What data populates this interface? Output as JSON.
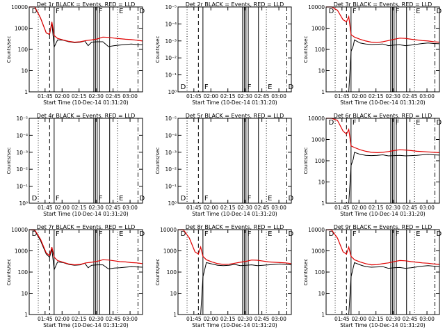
{
  "chart_data": {
    "type": "line",
    "x_label": "Start Time (10-Dec-14 01:31:20)",
    "y_label": "Counts/sec",
    "x_ticks": [
      "01:45",
      "02:00",
      "02:15",
      "02:30",
      "02:45",
      "03:00"
    ],
    "x_range_minutes": [
      0,
      100
    ],
    "y_scale": "log",
    "grid": false,
    "legend_text": "BLACK = Events, RED = LLD",
    "series_colors": {
      "events": "#000000",
      "lld": "#e00000"
    },
    "panels": [
      {
        "title": "Det 1r BLACK = Events, RED = LLD",
        "type": "data",
        "y_ticks": [
          "1",
          "10",
          "100",
          "1000",
          "10000"
        ],
        "ylim": [
          1,
          10000
        ],
        "event_x": [
          [
            0,
            10000
          ],
          [
            5,
            10000
          ],
          [
            10,
            3000
          ],
          [
            15,
            600
          ],
          [
            18,
            500
          ],
          [
            20,
            1800
          ],
          [
            22,
            130
          ],
          [
            25,
            280
          ],
          [
            30,
            270
          ],
          [
            35,
            230
          ],
          [
            40,
            210
          ],
          [
            45,
            220
          ],
          [
            49,
            250
          ],
          [
            52,
            150
          ],
          [
            55,
            220
          ],
          [
            60,
            230
          ],
          [
            65,
            230
          ],
          [
            70,
            135
          ],
          [
            75,
            150
          ],
          [
            80,
            160
          ],
          [
            85,
            170
          ],
          [
            90,
            180
          ],
          [
            95,
            170
          ],
          [
            100,
            165
          ]
        ],
        "lld_x": [
          [
            0,
            10000
          ],
          [
            5,
            10000
          ],
          [
            10,
            3000
          ],
          [
            15,
            600
          ],
          [
            18,
            520
          ],
          [
            20,
            2000
          ],
          [
            22,
            450
          ],
          [
            25,
            330
          ],
          [
            30,
            280
          ],
          [
            35,
            240
          ],
          [
            40,
            220
          ],
          [
            45,
            230
          ],
          [
            50,
            260
          ],
          [
            55,
            280
          ],
          [
            60,
            310
          ],
          [
            65,
            380
          ],
          [
            70,
            370
          ],
          [
            75,
            340
          ],
          [
            80,
            320
          ],
          [
            85,
            300
          ],
          [
            90,
            290
          ],
          [
            95,
            270
          ],
          [
            100,
            250
          ]
        ]
      },
      {
        "title": "Det 2r BLACK = Events, RED = LLD",
        "type": "empty",
        "y_ticks": [
          "10⁰",
          "10⁻¹",
          "10⁻²",
          "10⁻³",
          "10⁻⁴",
          "10⁻⁵"
        ]
      },
      {
        "title": "Det 3r BLACK = Events, RED = LLD",
        "type": "data",
        "y_ticks": [
          "1",
          "10",
          "100",
          "1000",
          "10000"
        ],
        "ylim": [
          1,
          10000
        ],
        "event_x": [
          [
            20,
            1
          ],
          [
            22,
            80
          ],
          [
            24,
            150
          ],
          [
            25,
            280
          ],
          [
            30,
            200
          ],
          [
            35,
            180
          ],
          [
            40,
            170
          ],
          [
            45,
            175
          ],
          [
            50,
            180
          ],
          [
            55,
            150
          ],
          [
            60,
            160
          ],
          [
            65,
            165
          ],
          [
            70,
            150
          ],
          [
            75,
            160
          ],
          [
            80,
            175
          ],
          [
            85,
            190
          ],
          [
            90,
            200
          ],
          [
            95,
            190
          ],
          [
            100,
            185
          ]
        ],
        "lld_x": [
          [
            0,
            10000
          ],
          [
            5,
            10000
          ],
          [
            10,
            7000
          ],
          [
            15,
            2500
          ],
          [
            18,
            2000
          ],
          [
            20,
            3500
          ],
          [
            22,
            500
          ],
          [
            25,
            380
          ],
          [
            30,
            300
          ],
          [
            35,
            250
          ],
          [
            40,
            220
          ],
          [
            45,
            210
          ],
          [
            50,
            230
          ],
          [
            55,
            260
          ],
          [
            60,
            300
          ],
          [
            65,
            340
          ],
          [
            70,
            330
          ],
          [
            75,
            300
          ],
          [
            80,
            280
          ],
          [
            85,
            260
          ],
          [
            90,
            250
          ],
          [
            95,
            230
          ],
          [
            100,
            220
          ]
        ]
      },
      {
        "title": "Det 4r BLACK = Events, RED = LLD",
        "type": "empty",
        "y_ticks": [
          "10⁰",
          "10⁻¹",
          "10⁻²",
          "10⁻³",
          "10⁻⁴",
          "10⁻⁵"
        ]
      },
      {
        "title": "Det 5r BLACK = Events, RED = LLD",
        "type": "empty",
        "y_ticks": [
          "10⁰",
          "10⁻¹",
          "10⁻²",
          "10⁻³",
          "10⁻⁴",
          "10⁻⁵"
        ]
      },
      {
        "title": "Det 6r BLACK = Events, RED = LLD",
        "type": "data",
        "y_ticks": [
          "1",
          "10",
          "100",
          "1000",
          "10000"
        ],
        "ylim": [
          1,
          10000
        ],
        "event_x": [
          [
            20,
            1
          ],
          [
            22,
            60
          ],
          [
            24,
            120
          ],
          [
            25,
            250
          ],
          [
            30,
            200
          ],
          [
            35,
            180
          ],
          [
            40,
            175
          ],
          [
            45,
            180
          ],
          [
            50,
            190
          ],
          [
            55,
            170
          ],
          [
            60,
            175
          ],
          [
            65,
            180
          ],
          [
            70,
            170
          ],
          [
            75,
            175
          ],
          [
            80,
            180
          ],
          [
            85,
            190
          ],
          [
            90,
            200
          ],
          [
            95,
            190
          ],
          [
            100,
            185
          ]
        ],
        "lld_x": [
          [
            0,
            10000
          ],
          [
            5,
            10000
          ],
          [
            10,
            8000
          ],
          [
            15,
            2500
          ],
          [
            18,
            1800
          ],
          [
            20,
            3000
          ],
          [
            22,
            500
          ],
          [
            25,
            420
          ],
          [
            30,
            330
          ],
          [
            35,
            280
          ],
          [
            40,
            250
          ],
          [
            45,
            240
          ],
          [
            50,
            250
          ],
          [
            55,
            270
          ],
          [
            60,
            300
          ],
          [
            65,
            330
          ],
          [
            70,
            320
          ],
          [
            75,
            300
          ],
          [
            80,
            280
          ],
          [
            85,
            270
          ],
          [
            90,
            260
          ],
          [
            95,
            250
          ],
          [
            100,
            240
          ]
        ]
      },
      {
        "title": "Det 7r BLACK = Events, RED = LLD",
        "type": "data",
        "y_ticks": [
          "1",
          "10",
          "100",
          "1000",
          "10000"
        ],
        "ylim": [
          1,
          10000
        ],
        "event_x": [
          [
            0,
            10000
          ],
          [
            5,
            9000
          ],
          [
            10,
            3000
          ],
          [
            15,
            700
          ],
          [
            18,
            500
          ],
          [
            20,
            1200
          ],
          [
            22,
            130
          ],
          [
            25,
            300
          ],
          [
            30,
            280
          ],
          [
            35,
            230
          ],
          [
            40,
            210
          ],
          [
            45,
            220
          ],
          [
            49,
            260
          ],
          [
            52,
            160
          ],
          [
            55,
            210
          ],
          [
            60,
            220
          ],
          [
            65,
            220
          ],
          [
            70,
            140
          ],
          [
            75,
            155
          ],
          [
            80,
            160
          ],
          [
            85,
            170
          ],
          [
            90,
            180
          ],
          [
            95,
            175
          ],
          [
            100,
            170
          ]
        ],
        "lld_x": [
          [
            0,
            10000
          ],
          [
            5,
            9500
          ],
          [
            10,
            3500
          ],
          [
            15,
            800
          ],
          [
            18,
            600
          ],
          [
            20,
            1500
          ],
          [
            22,
            500
          ],
          [
            25,
            350
          ],
          [
            30,
            290
          ],
          [
            35,
            240
          ],
          [
            40,
            220
          ],
          [
            45,
            230
          ],
          [
            50,
            270
          ],
          [
            55,
            290
          ],
          [
            60,
            320
          ],
          [
            65,
            380
          ],
          [
            70,
            370
          ],
          [
            75,
            340
          ],
          [
            80,
            310
          ],
          [
            85,
            300
          ],
          [
            90,
            280
          ],
          [
            95,
            270
          ],
          [
            100,
            250
          ]
        ]
      },
      {
        "title": "Det 8r BLACK = Events, RED = LLD",
        "type": "data",
        "y_ticks": [
          "1",
          "10",
          "100",
          "1000",
          "10000"
        ],
        "ylim": [
          1,
          10000
        ],
        "event_x": [
          [
            20,
            1
          ],
          [
            22,
            60
          ],
          [
            25,
            280
          ],
          [
            30,
            240
          ],
          [
            35,
            210
          ],
          [
            40,
            200
          ],
          [
            45,
            210
          ],
          [
            50,
            230
          ],
          [
            55,
            200
          ],
          [
            60,
            210
          ],
          [
            65,
            220
          ],
          [
            70,
            200
          ],
          [
            75,
            210
          ],
          [
            80,
            220
          ],
          [
            85,
            230
          ],
          [
            90,
            240
          ],
          [
            95,
            230
          ],
          [
            100,
            220
          ]
        ],
        "lld_x": [
          [
            0,
            10000
          ],
          [
            5,
            9500
          ],
          [
            10,
            4000
          ],
          [
            15,
            900
          ],
          [
            18,
            700
          ],
          [
            20,
            1500
          ],
          [
            22,
            550
          ],
          [
            25,
            380
          ],
          [
            30,
            300
          ],
          [
            35,
            250
          ],
          [
            40,
            230
          ],
          [
            45,
            235
          ],
          [
            50,
            260
          ],
          [
            55,
            290
          ],
          [
            60,
            320
          ],
          [
            65,
            370
          ],
          [
            70,
            360
          ],
          [
            75,
            330
          ],
          [
            80,
            300
          ],
          [
            85,
            290
          ],
          [
            90,
            280
          ],
          [
            95,
            270
          ],
          [
            100,
            250
          ]
        ]
      },
      {
        "title": "Det 9r BLACK = Events, RED = LLD",
        "type": "data",
        "y_ticks": [
          "1",
          "10",
          "100",
          "1000",
          "10000"
        ],
        "ylim": [
          1,
          10000
        ],
        "event_x": [
          [
            20,
            1
          ],
          [
            22,
            60
          ],
          [
            25,
            280
          ],
          [
            30,
            220
          ],
          [
            35,
            180
          ],
          [
            40,
            170
          ],
          [
            45,
            175
          ],
          [
            50,
            180
          ],
          [
            55,
            150
          ],
          [
            60,
            160
          ],
          [
            65,
            165
          ],
          [
            70,
            150
          ],
          [
            75,
            160
          ],
          [
            80,
            175
          ],
          [
            85,
            190
          ],
          [
            90,
            200
          ],
          [
            95,
            190
          ],
          [
            100,
            185
          ]
        ],
        "lld_x": [
          [
            0,
            10000
          ],
          [
            5,
            9500
          ],
          [
            10,
            4000
          ],
          [
            15,
            900
          ],
          [
            18,
            700
          ],
          [
            20,
            1500
          ],
          [
            22,
            550
          ],
          [
            25,
            380
          ],
          [
            30,
            300
          ],
          [
            35,
            250
          ],
          [
            40,
            220
          ],
          [
            45,
            225
          ],
          [
            50,
            250
          ],
          [
            55,
            270
          ],
          [
            60,
            310
          ],
          [
            65,
            350
          ],
          [
            70,
            340
          ],
          [
            75,
            310
          ],
          [
            80,
            290
          ],
          [
            85,
            270
          ],
          [
            90,
            260
          ],
          [
            95,
            240
          ],
          [
            100,
            230
          ]
        ]
      }
    ],
    "vertical_markers": [
      {
        "x": 8,
        "style": "dotted",
        "label": ""
      },
      {
        "x": 18,
        "style": "dashed",
        "label": ""
      },
      {
        "x": 22,
        "style": "solid",
        "label": "F"
      },
      {
        "x": 57,
        "style": "solid",
        "label": ""
      },
      {
        "x": 58.5,
        "style": "solid",
        "label": ""
      },
      {
        "x": 60,
        "style": "solid",
        "label": "F"
      },
      {
        "x": 62,
        "style": "solid",
        "label": ""
      },
      {
        "x": 71,
        "style": "solid",
        "label": ""
      },
      {
        "x": 78,
        "style": "dotted",
        "label": "E"
      },
      {
        "x": 96,
        "style": "dashdot",
        "label": "D"
      },
      {
        "x": 1,
        "style": "none",
        "label": "D"
      }
    ]
  }
}
